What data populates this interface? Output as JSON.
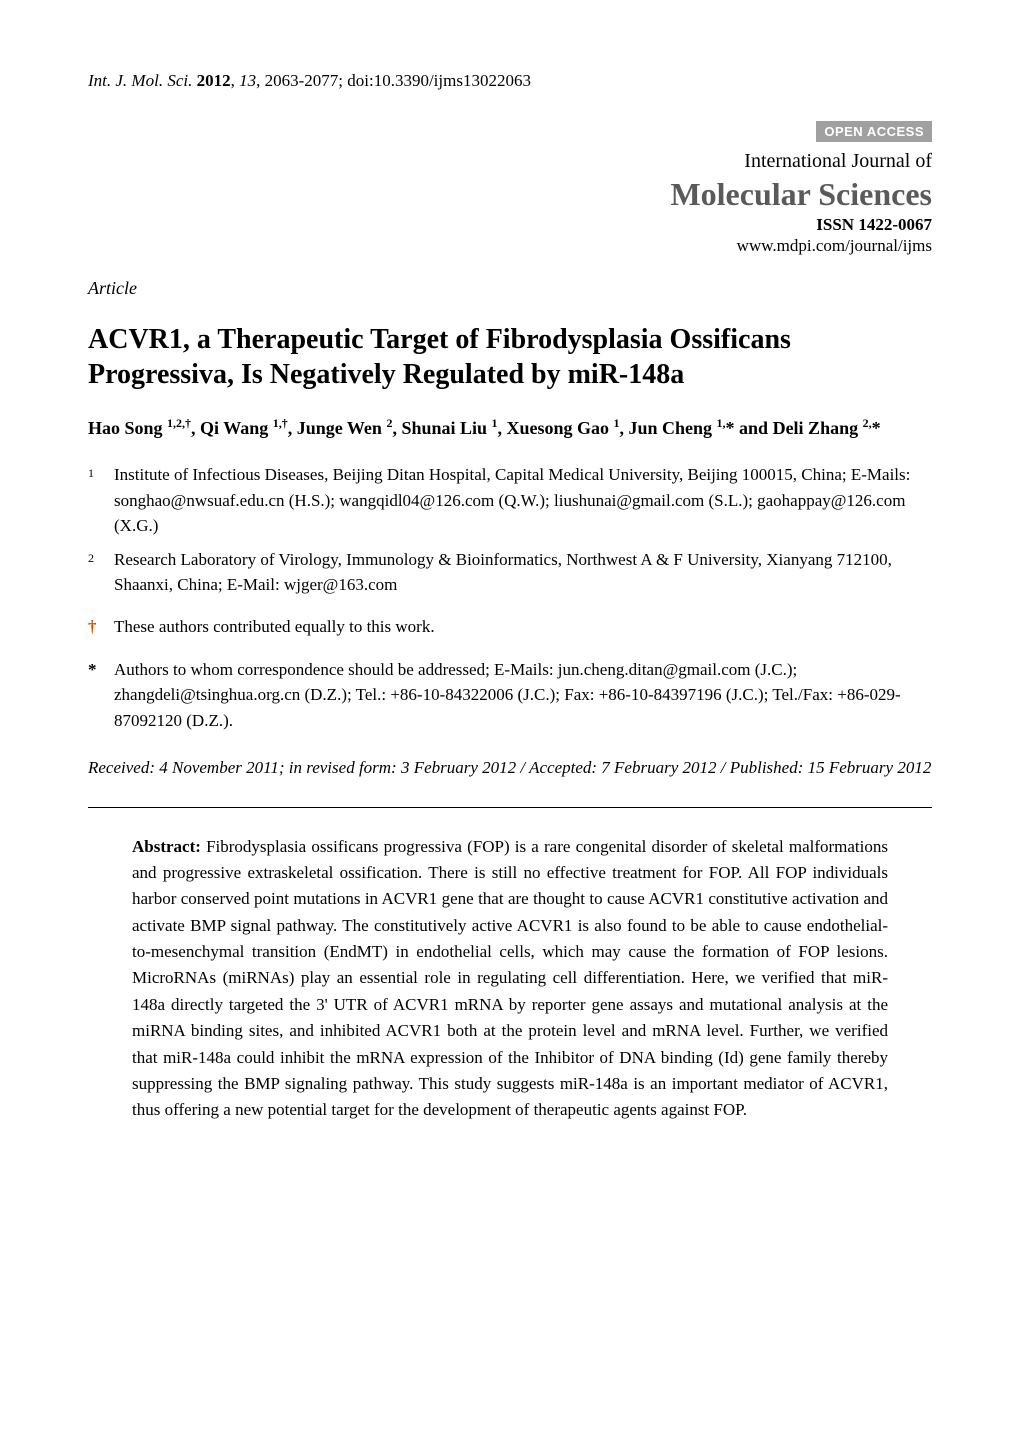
{
  "header": {
    "journal_abbrev": "Int. J. Mol. Sci.",
    "year": "2012",
    "volume": "13",
    "pages": "2063-2077",
    "doi": "doi:10.3390/ijms13022063"
  },
  "open_access_badge": "OPEN ACCESS",
  "journal": {
    "line1": "International Journal of",
    "line2": "Molecular Sciences",
    "issn_label": "ISSN 1422-0067",
    "url": "www.mdpi.com/journal/ijms"
  },
  "article_label": "Article",
  "title": "ACVR1, a Therapeutic Target of Fibrodysplasia Ossificans Progressiva, Is Negatively Regulated by miR-148a",
  "authors_html": "Hao Song <sup>1,2,†</sup>, Qi Wang <sup>1,†</sup>, Junge Wen <sup>2</sup>, Shunai Liu <sup>1</sup>, Xuesong Gao <sup>1</sup>, Jun Cheng <sup>1,</sup>* and Deli Zhang <sup>2,</sup>*",
  "affiliations": [
    {
      "num": "1",
      "text": "Institute of Infectious Diseases, Beijing Ditan Hospital, Capital Medical University, Beijing 100015, China; E-Mails: songhao@nwsuaf.edu.cn (H.S.); wangqidl04@126.com (Q.W.); liushunai@gmail.com (S.L.); gaohappay@126.com (X.G.)"
    },
    {
      "num": "2",
      "text": "Research Laboratory of Virology, Immunology & Bioinformatics, Northwest A & F University, Xianyang 712100, Shaanxi, China; E-Mail: wjger@163.com"
    }
  ],
  "equal_contrib": {
    "mark": "†",
    "text": "These authors contributed equally to this work."
  },
  "correspondence": {
    "mark": "*",
    "text": "Authors to whom correspondence should be addressed; E-Mails: jun.cheng.ditan@gmail.com (J.C.); zhangdeli@tsinghua.org.cn (D.Z.); Tel.: +86-10-84322006 (J.C.); Fax: +86-10-84397196 (J.C.); Tel./Fax: +86-029-87092120 (D.Z.)."
  },
  "dates": "Received: 4 November 2011; in revised form: 3 February 2012 / Accepted: 7 February 2012 / Published: 15 February 2012",
  "abstract": {
    "label": "Abstract:",
    "text": "Fibrodysplasia ossificans progressiva (FOP) is a rare congenital disorder of skeletal malformations and progressive extraskeletal ossification. There is still no effective treatment for FOP. All FOP individuals harbor conserved point mutations in ACVR1 gene that are thought to cause ACVR1 constitutive activation and activate BMP signal pathway. The constitutively active ACVR1 is also found to be able to cause endothelial-to-mesenchymal transition (EndMT) in endothelial cells, which may cause the formation of FOP lesions. MicroRNAs (miRNAs) play an essential role in regulating cell differentiation. Here, we verified that miR-148a directly targeted the 3' UTR of ACVR1 mRNA by reporter gene assays and mutational analysis at the miRNA binding sites, and inhibited ACVR1 both at the protein level and mRNA level. Further, we verified that miR-148a could inhibit the mRNA expression of the Inhibitor of DNA binding (Id) gene family thereby suppressing the BMP signaling pathway. This study suggests miR-148a is an important mediator of ACVR1, thus offering a new potential target for the development of therapeutic agents against FOP."
  },
  "colors": {
    "badge_bg": "#a0a0a0",
    "badge_fg": "#ffffff",
    "journal_title": "#5a5a5a",
    "dagger": "#cc5500",
    "text": "#000000",
    "background": "#ffffff"
  },
  "typography": {
    "body_family": "Times New Roman",
    "header_fontsize_pt": 13,
    "title_fontsize_pt": 21,
    "authors_fontsize_pt": 14,
    "body_fontsize_pt": 13,
    "journal_title_fontsize_pt": 24
  }
}
